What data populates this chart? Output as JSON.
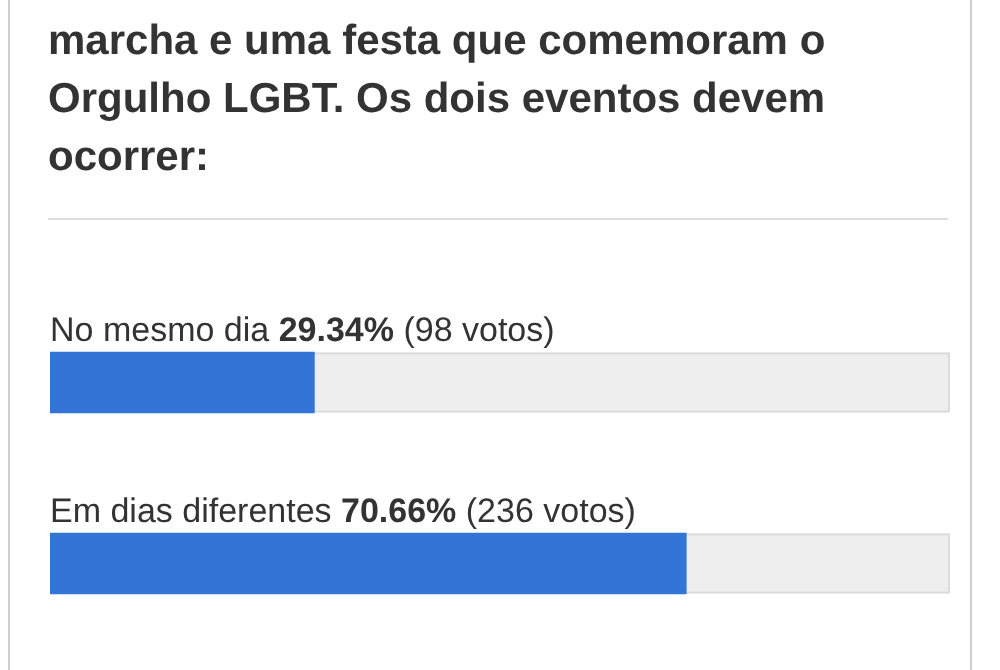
{
  "chart_data": {
    "type": "bar",
    "orientation": "horizontal",
    "title": "marcha e uma festa que comemoram o Orgulho LGBT. Os dois eventos devem ocorrer:",
    "categories": [
      "No mesmo dia",
      "Em dias diferentes"
    ],
    "values": [
      29.34,
      70.66
    ],
    "color": "#3375d6",
    "value_labels": [
      "29.34%",
      "70.66%"
    ],
    "annotations": [
      "(98 votos)",
      "(236 votos)"
    ],
    "xlim": [
      0,
      100
    ]
  }
}
